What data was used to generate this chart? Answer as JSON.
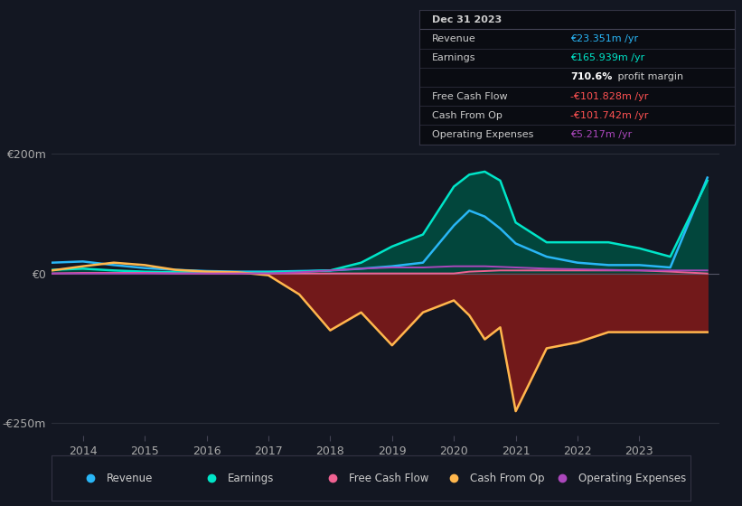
{
  "bg_color": "#131722",
  "plot_bg_color": "#131722",
  "grid_color": "#2a2e39",
  "zero_line_color": "#555566",
  "ylim": [
    -270,
    220
  ],
  "xlim": [
    2013.5,
    2024.3
  ],
  "yticks": [
    -250,
    0,
    200
  ],
  "ytick_labels": [
    "-€250m",
    "€0",
    "€200m"
  ],
  "xticks": [
    2014,
    2015,
    2016,
    2017,
    2018,
    2019,
    2020,
    2021,
    2022,
    2023
  ],
  "colors": {
    "revenue": "#29b6f6",
    "earnings": "#00e5c8",
    "fcf": "#f06292",
    "cashfromop": "#ffb74d",
    "opex": "#ab47bc"
  },
  "fill_earnings_color": "#004d40",
  "fill_cashop_color": "#7b1a1a",
  "info_box_bg": "#0a0c12",
  "info_box_border": "#333344",
  "info_box": {
    "date": "Dec 31 2023",
    "revenue_label": "Revenue",
    "revenue_value": "€23.351m /yr",
    "revenue_color": "#29b6f6",
    "earnings_label": "Earnings",
    "earnings_value": "€165.939m /yr",
    "earnings_color": "#00e5c8",
    "margin_text": "710.6%",
    "margin_label": " profit margin",
    "fcf_label": "Free Cash Flow",
    "fcf_value": "-€101.828m /yr",
    "fcf_color": "#ff5252",
    "cashop_label": "Cash From Op",
    "cashop_value": "-€101.742m /yr",
    "cashop_color": "#ff5252",
    "opex_label": "Operating Expenses",
    "opex_value": "€5.217m /yr",
    "opex_color": "#ab47bc"
  },
  "legend": [
    {
      "label": "Revenue",
      "color": "#29b6f6"
    },
    {
      "label": "Earnings",
      "color": "#00e5c8"
    },
    {
      "label": "Free Cash Flow",
      "color": "#f06292"
    },
    {
      "label": "Cash From Op",
      "color": "#ffb74d"
    },
    {
      "label": "Operating Expenses",
      "color": "#ab47bc"
    }
  ],
  "x": [
    2013.5,
    2014.0,
    2014.5,
    2015.0,
    2015.5,
    2016.0,
    2016.5,
    2017.0,
    2017.5,
    2018.0,
    2018.5,
    2019.0,
    2019.5,
    2020.0,
    2020.25,
    2020.5,
    2020.75,
    2021.0,
    2021.5,
    2022.0,
    2022.5,
    2023.0,
    2023.5,
    2024.1
  ],
  "revenue": [
    18,
    20,
    14,
    9,
    6,
    4,
    3,
    3,
    4,
    5,
    8,
    12,
    18,
    80,
    105,
    95,
    75,
    50,
    28,
    18,
    14,
    14,
    10,
    160
  ],
  "earnings": [
    6,
    8,
    5,
    3,
    2,
    2,
    1,
    2,
    3,
    5,
    18,
    45,
    65,
    145,
    165,
    170,
    155,
    85,
    52,
    52,
    52,
    42,
    28,
    155
  ],
  "fcf": [
    0,
    1,
    1,
    1,
    0,
    0,
    0,
    0,
    0,
    0,
    0,
    0,
    0,
    0,
    3,
    4,
    5,
    5,
    5,
    5,
    5,
    5,
    3,
    0
  ],
  "cashfromop": [
    5,
    12,
    18,
    14,
    6,
    3,
    2,
    -3,
    -35,
    -95,
    -65,
    -120,
    -65,
    -45,
    -70,
    -110,
    -90,
    -230,
    -125,
    -115,
    -98,
    -98,
    -98,
    -98
  ],
  "opex": [
    0,
    0,
    0,
    0,
    0,
    0,
    0,
    0,
    2,
    5,
    8,
    10,
    10,
    12,
    12,
    12,
    11,
    10,
    8,
    7,
    6,
    5,
    5,
    5
  ]
}
